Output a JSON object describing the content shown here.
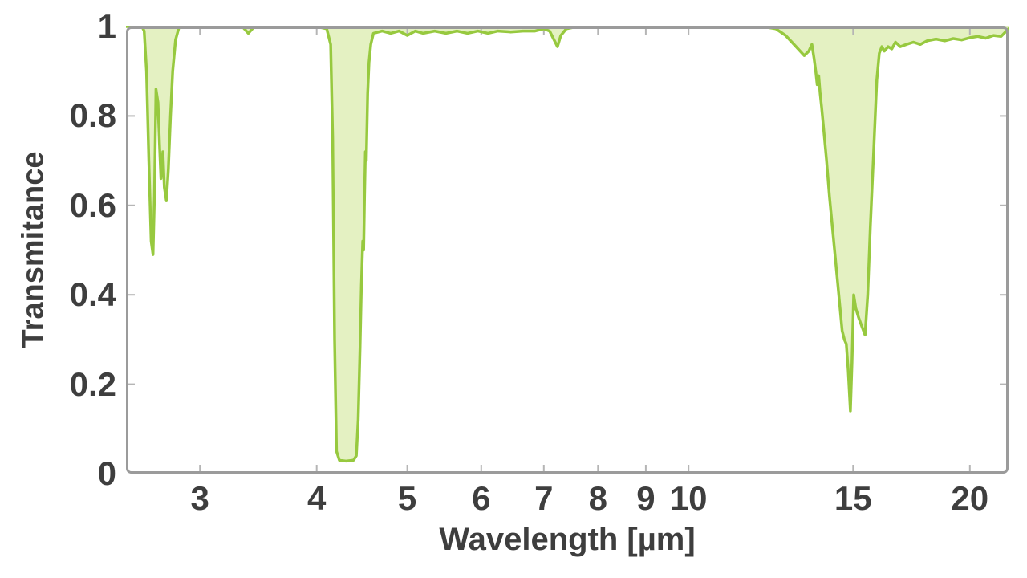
{
  "figure": {
    "background": "#ffffff"
  },
  "chart_data": {
    "type": "area",
    "title": "",
    "xlabel": "Wavelength [µm]",
    "ylabel": "Transmitance",
    "x_scale": "log",
    "xlim": [
      2.5,
      22
    ],
    "ylim": [
      0,
      1
    ],
    "x_ticks": [
      3,
      4,
      5,
      6,
      7,
      8,
      9,
      10,
      15,
      20
    ],
    "x_tick_labels": [
      "3",
      "4",
      "5",
      "6",
      "7",
      "8",
      "9",
      "10",
      "15",
      "20"
    ],
    "y_ticks": [
      0,
      0.2,
      0.4,
      0.6,
      0.8,
      1
    ],
    "y_tick_labels": [
      "0",
      "0.2",
      "0.4",
      "0.6",
      "0.8",
      "1"
    ],
    "y_tick_marks": [
      0.2,
      0.4,
      0.6,
      0.8
    ],
    "legend": null,
    "grid": false,
    "fill_baseline": 1,
    "colors": {
      "line": "#97c93f",
      "fill": "#e4f1c2",
      "frame": "#9b9b9b",
      "tick": "#b5b5b5",
      "text": "#3e3e3e"
    },
    "series": [
      {
        "name": "transmittance-spectrum",
        "points": [
          [
            2.5,
            1
          ],
          [
            2.6,
            1
          ],
          [
            2.615,
            0.99
          ],
          [
            2.63,
            0.9
          ],
          [
            2.645,
            0.7
          ],
          [
            2.66,
            0.52
          ],
          [
            2.672,
            0.49
          ],
          [
            2.682,
            0.62
          ],
          [
            2.692,
            0.86
          ],
          [
            2.705,
            0.83
          ],
          [
            2.715,
            0.74
          ],
          [
            2.725,
            0.66
          ],
          [
            2.738,
            0.72
          ],
          [
            2.748,
            0.64
          ],
          [
            2.762,
            0.61
          ],
          [
            2.775,
            0.68
          ],
          [
            2.79,
            0.8
          ],
          [
            2.805,
            0.9
          ],
          [
            2.825,
            0.97
          ],
          [
            2.85,
            1
          ],
          [
            3.2,
            1
          ],
          [
            3.33,
            1
          ],
          [
            3.38,
            0.985
          ],
          [
            3.43,
            1
          ],
          [
            4.0,
            1
          ],
          [
            4.1,
            0.995
          ],
          [
            4.14,
            0.96
          ],
          [
            4.16,
            0.75
          ],
          [
            4.18,
            0.3
          ],
          [
            4.2,
            0.05
          ],
          [
            4.23,
            0.03
          ],
          [
            4.3,
            0.028
          ],
          [
            4.38,
            0.03
          ],
          [
            4.41,
            0.04
          ],
          [
            4.43,
            0.12
          ],
          [
            4.45,
            0.28
          ],
          [
            4.465,
            0.42
          ],
          [
            4.48,
            0.52
          ],
          [
            4.49,
            0.5
          ],
          [
            4.5,
            0.62
          ],
          [
            4.51,
            0.72
          ],
          [
            4.52,
            0.7
          ],
          [
            4.535,
            0.85
          ],
          [
            4.55,
            0.92
          ],
          [
            4.57,
            0.96
          ],
          [
            4.6,
            0.985
          ],
          [
            4.7,
            0.99
          ],
          [
            4.8,
            0.985
          ],
          [
            4.9,
            0.99
          ],
          [
            5.0,
            0.98
          ],
          [
            5.1,
            0.99
          ],
          [
            5.2,
            0.985
          ],
          [
            5.35,
            0.99
          ],
          [
            5.5,
            0.985
          ],
          [
            5.65,
            0.99
          ],
          [
            5.8,
            0.985
          ],
          [
            5.95,
            0.99
          ],
          [
            6.1,
            0.985
          ],
          [
            6.25,
            0.99
          ],
          [
            6.45,
            0.988
          ],
          [
            6.65,
            0.99
          ],
          [
            6.85,
            0.99
          ],
          [
            7.0,
            0.995
          ],
          [
            7.1,
            0.99
          ],
          [
            7.18,
            0.97
          ],
          [
            7.24,
            0.955
          ],
          [
            7.3,
            0.98
          ],
          [
            7.4,
            0.995
          ],
          [
            7.6,
            1
          ],
          [
            8.0,
            1
          ],
          [
            9.0,
            1
          ],
          [
            10.0,
            1
          ],
          [
            11.0,
            1
          ],
          [
            12.0,
            1
          ],
          [
            12.4,
            0.995
          ],
          [
            12.7,
            0.98
          ],
          [
            12.9,
            0.965
          ],
          [
            13.1,
            0.95
          ],
          [
            13.3,
            0.935
          ],
          [
            13.45,
            0.945
          ],
          [
            13.55,
            0.96
          ],
          [
            13.62,
            0.93
          ],
          [
            13.68,
            0.9
          ],
          [
            13.73,
            0.87
          ],
          [
            13.78,
            0.89
          ],
          [
            13.83,
            0.85
          ],
          [
            13.88,
            0.82
          ],
          [
            13.95,
            0.77
          ],
          [
            14.05,
            0.7
          ],
          [
            14.15,
            0.62
          ],
          [
            14.3,
            0.52
          ],
          [
            14.45,
            0.42
          ],
          [
            14.6,
            0.32
          ],
          [
            14.68,
            0.3
          ],
          [
            14.75,
            0.29
          ],
          [
            14.82,
            0.23
          ],
          [
            14.9,
            0.14
          ],
          [
            14.96,
            0.25
          ],
          [
            15.02,
            0.4
          ],
          [
            15.1,
            0.37
          ],
          [
            15.2,
            0.35
          ],
          [
            15.32,
            0.33
          ],
          [
            15.45,
            0.31
          ],
          [
            15.55,
            0.4
          ],
          [
            15.65,
            0.55
          ],
          [
            15.78,
            0.72
          ],
          [
            15.9,
            0.88
          ],
          [
            16.0,
            0.94
          ],
          [
            16.1,
            0.955
          ],
          [
            16.2,
            0.945
          ],
          [
            16.35,
            0.955
          ],
          [
            16.5,
            0.95
          ],
          [
            16.65,
            0.965
          ],
          [
            16.85,
            0.955
          ],
          [
            17.1,
            0.96
          ],
          [
            17.4,
            0.965
          ],
          [
            17.7,
            0.96
          ],
          [
            18.0,
            0.968
          ],
          [
            18.4,
            0.972
          ],
          [
            18.8,
            0.968
          ],
          [
            19.2,
            0.973
          ],
          [
            19.6,
            0.97
          ],
          [
            20.0,
            0.975
          ],
          [
            20.4,
            0.978
          ],
          [
            20.8,
            0.974
          ],
          [
            21.2,
            0.98
          ],
          [
            21.6,
            0.978
          ],
          [
            22.0,
            0.995
          ]
        ]
      }
    ]
  }
}
